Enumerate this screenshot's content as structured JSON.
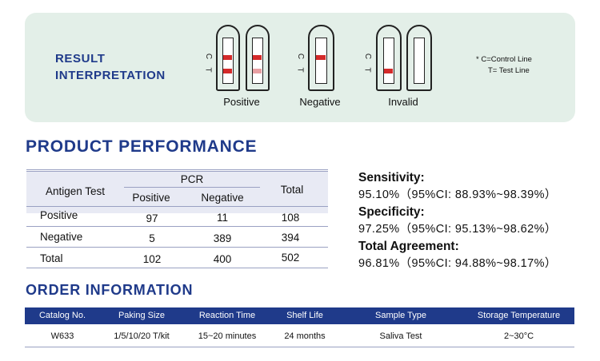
{
  "result_interpretation": {
    "title_line1": "RESULT",
    "title_line2": "INTERPRETATION",
    "letter_c": "C",
    "letter_t": "T",
    "captions": {
      "positive": "Positive",
      "negative": "Negative",
      "invalid": "Invalid"
    },
    "legend": {
      "control": "* C=Control Line",
      "test": "T= Test Line"
    },
    "colors": {
      "line_strong": "#d42a2a",
      "line_faint": "#e8a0a3",
      "panel": "#e3efe8"
    }
  },
  "product_performance": {
    "title": "PRODUCT PERFORMANCE",
    "table": {
      "antigen_header": "Antigen Test",
      "pcr_header": "PCR",
      "pcr_sub": [
        "Positive",
        "Negative"
      ],
      "total_header": "Total",
      "rows": [
        {
          "label": "Positive",
          "pos": "97",
          "neg": "11",
          "total": "108"
        },
        {
          "label": "Negative",
          "pos": "5",
          "neg": "389",
          "total": "394"
        },
        {
          "label": "Total",
          "pos": "102",
          "neg": "400",
          "total": "502"
        }
      ]
    },
    "stats": [
      {
        "label": "Sensitivity:",
        "value": "95.10%（95%CI: 88.93%~98.39%）"
      },
      {
        "label": "Specificity:",
        "value": "97.25%（95%CI: 95.13%~98.62%）"
      },
      {
        "label": "Total Agreement:",
        "value": "96.81%（95%CI: 94.88%~98.17%）"
      }
    ]
  },
  "order_information": {
    "title": "ORDER INFORMATION",
    "headers": [
      "Catalog No.",
      "Paking Size",
      "Reaction Time",
      "Shelf Life",
      "Sample Type",
      "Storage Temperature"
    ],
    "row": [
      "W633",
      "1/5/10/20 T/kit",
      "15~20 minutes",
      "24 months",
      "Saliva Test",
      "2~30°C"
    ],
    "header_color": "#1f3a8a"
  }
}
